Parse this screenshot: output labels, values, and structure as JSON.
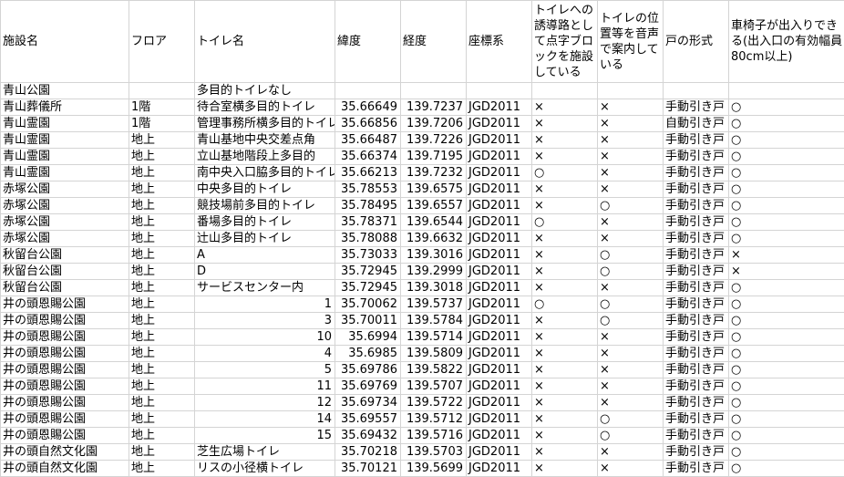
{
  "sheet": {
    "headers": [
      "施設名",
      "フロア",
      "トイレ名",
      "緯度",
      "経度",
      "座標系",
      "トイレへの誘導路として点字ブロックを施設している",
      "トイレの位置等を音声で案内している",
      "戸の形式",
      "車椅子が出入りできる(出入口の有効幅員80cm以上)"
    ],
    "rows": [
      [
        "青山公園",
        "",
        "多目的トイレなし",
        "",
        "",
        "",
        "",
        "",
        "",
        ""
      ],
      [
        "青山葬儀所",
        "1階",
        "待合室横多目的トイレ",
        "35.66649",
        "139.7237",
        "JGD2011",
        "×",
        "×",
        "手動引き戸",
        "○"
      ],
      [
        "青山霊園",
        "1階",
        "管理事務所横多目的トイレ",
        "35.66856",
        "139.7206",
        "JGD2011",
        "×",
        "×",
        "自動引き戸",
        "○"
      ],
      [
        "青山霊園",
        "地上",
        "青山基地中央交差点角",
        "35.66487",
        "139.7226",
        "JGD2011",
        "×",
        "×",
        "手動引き戸",
        "○"
      ],
      [
        "青山霊園",
        "地上",
        "立山基地階段上多目的",
        "35.66374",
        "139.7195",
        "JGD2011",
        "×",
        "×",
        "手動引き戸",
        "○"
      ],
      [
        "青山霊園",
        "地上",
        "南中央入口脇多目的トイレ",
        "35.66213",
        "139.7232",
        "JGD2011",
        "○",
        "×",
        "手動引き戸",
        "○"
      ],
      [
        "赤塚公園",
        "地上",
        "中央多目的トイレ",
        "35.78553",
        "139.6575",
        "JGD2011",
        "×",
        "×",
        "手動引き戸",
        "○"
      ],
      [
        "赤塚公園",
        "地上",
        "競技場前多目的トイレ",
        "35.78495",
        "139.6557",
        "JGD2011",
        "×",
        "○",
        "手動引き戸",
        "○"
      ],
      [
        "赤塚公園",
        "地上",
        "番場多目的トイレ",
        "35.78371",
        "139.6544",
        "JGD2011",
        "○",
        "×",
        "手動引き戸",
        "○"
      ],
      [
        "赤塚公園",
        "地上",
        "辻山多目的トイレ",
        "35.78088",
        "139.6632",
        "JGD2011",
        "×",
        "×",
        "手動引き戸",
        "○"
      ],
      [
        "秋留台公園",
        "地上",
        "A",
        "35.73033",
        "139.3016",
        "JGD2011",
        "×",
        "○",
        "手動引き戸",
        "×"
      ],
      [
        "秋留台公園",
        "地上",
        "D",
        "35.72945",
        "139.2999",
        "JGD2011",
        "×",
        "○",
        "手動引き戸",
        "×"
      ],
      [
        "秋留台公園",
        "地上",
        "サービスセンター内",
        "35.72945",
        "139.3018",
        "JGD2011",
        "×",
        "×",
        "手動引き戸",
        "○"
      ],
      [
        "井の頭恩賜公園",
        "地上",
        "1",
        "35.70062",
        "139.5737",
        "JGD2011",
        "○",
        "○",
        "手動引き戸",
        "○"
      ],
      [
        "井の頭恩賜公園",
        "地上",
        "3",
        "35.70011",
        "139.5784",
        "JGD2011",
        "×",
        "○",
        "手動引き戸",
        "○"
      ],
      [
        "井の頭恩賜公園",
        "地上",
        "10",
        "35.6994",
        "139.5714",
        "JGD2011",
        "×",
        "×",
        "手動引き戸",
        "○"
      ],
      [
        "井の頭恩賜公園",
        "地上",
        "4",
        "35.6985",
        "139.5809",
        "JGD2011",
        "×",
        "×",
        "手動引き戸",
        "○"
      ],
      [
        "井の頭恩賜公園",
        "地上",
        "5",
        "35.69786",
        "139.5822",
        "JGD2011",
        "×",
        "×",
        "手動引き戸",
        "○"
      ],
      [
        "井の頭恩賜公園",
        "地上",
        "11",
        "35.69769",
        "139.5707",
        "JGD2011",
        "×",
        "×",
        "手動引き戸",
        "○"
      ],
      [
        "井の頭恩賜公園",
        "地上",
        "12",
        "35.69734",
        "139.5722",
        "JGD2011",
        "×",
        "×",
        "手動引き戸",
        "○"
      ],
      [
        "井の頭恩賜公園",
        "地上",
        "14",
        "35.69557",
        "139.5712",
        "JGD2011",
        "×",
        "○",
        "手動引き戸",
        "○"
      ],
      [
        "井の頭恩賜公園",
        "地上",
        "15",
        "35.69432",
        "139.5716",
        "JGD2011",
        "×",
        "○",
        "手動引き戸",
        "○"
      ],
      [
        "井の頭自然文化園",
        "地上",
        "芝生広場トイレ",
        "35.70218",
        "139.5703",
        "JGD2011",
        "×",
        "×",
        "手動引き戸",
        "○"
      ],
      [
        "井の頭自然文化園",
        "地上",
        "リスの小径横トイレ",
        "35.70121",
        "139.5699",
        "JGD2011",
        "×",
        "×",
        "手動引き戸",
        "○"
      ]
    ]
  }
}
